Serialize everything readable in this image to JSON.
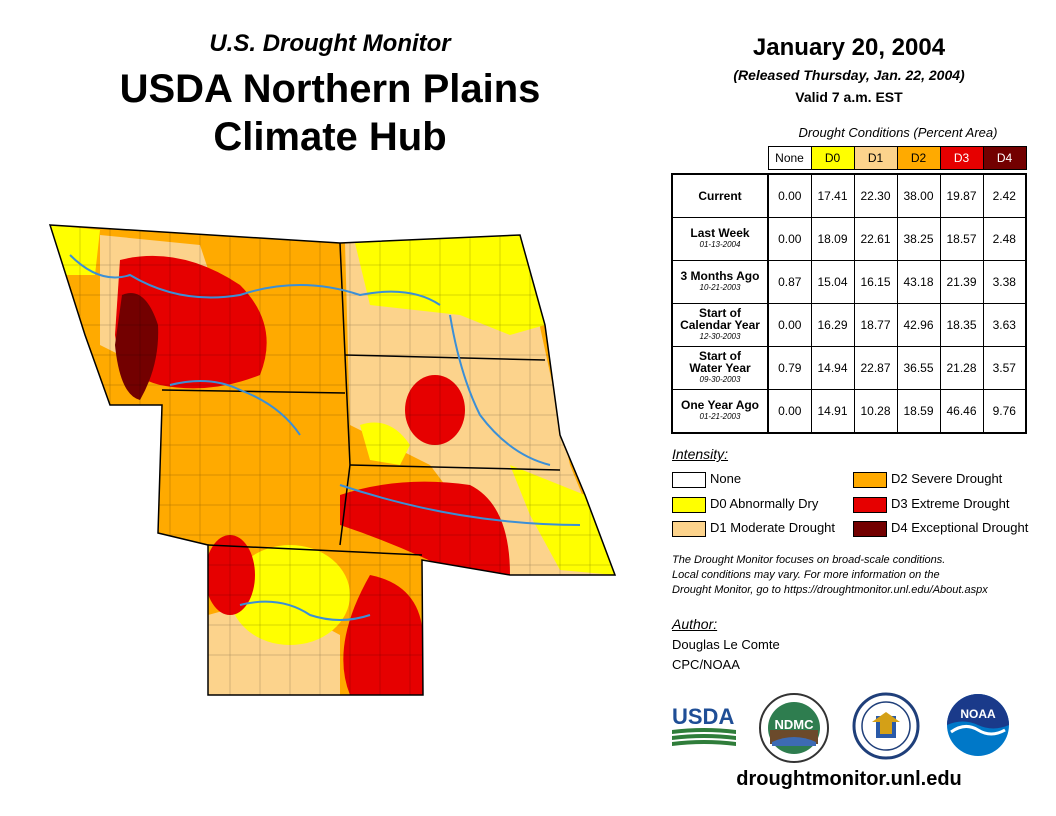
{
  "header": {
    "subtitle": "U.S. Drought Monitor",
    "title_line1": "USDA Northern Plains",
    "title_line2": "Climate Hub"
  },
  "date": {
    "main": "January 20, 2004",
    "released": "(Released Thursday, Jan. 22, 2004)",
    "valid": "Valid 7 a.m. EST"
  },
  "table": {
    "caption": "Drought Conditions (Percent Area)",
    "columns": [
      "None",
      "D0",
      "D1",
      "D2",
      "D3",
      "D4"
    ],
    "column_colors": [
      "#ffffff",
      "#ffff00",
      "#fcd38c",
      "#ffaa00",
      "#e60000",
      "#730000"
    ],
    "rows": [
      {
        "label": "Current",
        "date": "",
        "values": [
          "0.00",
          "17.41",
          "22.30",
          "38.00",
          "19.87",
          "2.42"
        ]
      },
      {
        "label": "Last Week",
        "date": "01-13-2004",
        "values": [
          "0.00",
          "18.09",
          "22.61",
          "38.25",
          "18.57",
          "2.48"
        ]
      },
      {
        "label": "3 Months Ago",
        "date": "10-21-2003",
        "values": [
          "0.87",
          "15.04",
          "16.15",
          "43.18",
          "21.39",
          "3.38"
        ]
      },
      {
        "label_line1": "Start of",
        "label_line2": "Calendar Year",
        "date": "12-30-2003",
        "values": [
          "0.00",
          "16.29",
          "18.77",
          "42.96",
          "18.35",
          "3.63"
        ]
      },
      {
        "label_line1": "Start of",
        "label_line2": "Water Year",
        "date": "09-30-2003",
        "values": [
          "0.79",
          "14.94",
          "22.87",
          "36.55",
          "21.28",
          "3.57"
        ]
      },
      {
        "label": "One Year Ago",
        "date": "01-21-2003",
        "values": [
          "0.00",
          "14.91",
          "10.28",
          "18.59",
          "46.46",
          "9.76"
        ]
      }
    ]
  },
  "legend": {
    "title": "Intensity:",
    "items": [
      {
        "label": "None",
        "color": "#ffffff"
      },
      {
        "label": "D0 Abnormally Dry",
        "color": "#ffff00"
      },
      {
        "label": "D1 Moderate Drought",
        "color": "#fcd38c"
      },
      {
        "label": "D2 Severe Drought",
        "color": "#ffaa00"
      },
      {
        "label": "D3 Extreme Drought",
        "color": "#e60000"
      },
      {
        "label": "D4 Exceptional Drought",
        "color": "#730000"
      }
    ]
  },
  "note": {
    "line1": "The Drought Monitor focuses on broad-scale conditions.",
    "line2": "Local conditions may vary. For more information on the",
    "line3": "Drought Monitor, go to https://droughtmonitor.unl.edu/About.aspx"
  },
  "author": {
    "title": "Author:",
    "name": "Douglas Le Comte",
    "org": "CPC/NOAA"
  },
  "logos": {
    "usda": "USDA",
    "ndmc": "NDMC",
    "noaa": "NOAA"
  },
  "colors": {
    "none": "#ffffff",
    "d0": "#ffff00",
    "d1": "#fcd38c",
    "d2": "#ffaa00",
    "d3": "#e60000",
    "d4": "#730000",
    "river": "#3b8fd6",
    "usda_blue": "#1f4e96",
    "usda_green": "#2f7d3a",
    "noaa_blue": "#0078c8",
    "noaa_dark": "#1a3a8a"
  },
  "url": "droughtmonitor.unl.edu"
}
